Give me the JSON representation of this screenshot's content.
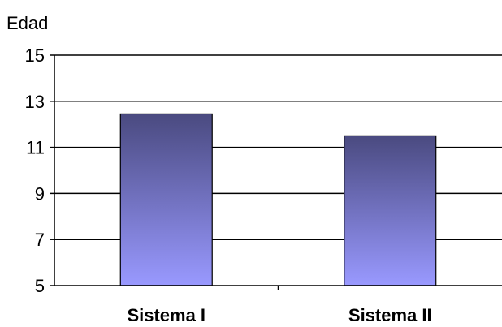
{
  "chart_data": {
    "type": "bar",
    "ylabel": "Edad",
    "categories": [
      "Sistema I",
      "Sistema II"
    ],
    "values": [
      12.45,
      11.5
    ],
    "ylim": [
      5,
      15
    ],
    "yticks": [
      "5",
      "7",
      "9",
      "11",
      "13",
      "15"
    ],
    "grid": true,
    "legend": "none",
    "colors": {
      "bar_top": "#4a4a80",
      "bar_bottom": "#9999ff",
      "bar_edge": "#000000",
      "grid": "#000000"
    }
  }
}
